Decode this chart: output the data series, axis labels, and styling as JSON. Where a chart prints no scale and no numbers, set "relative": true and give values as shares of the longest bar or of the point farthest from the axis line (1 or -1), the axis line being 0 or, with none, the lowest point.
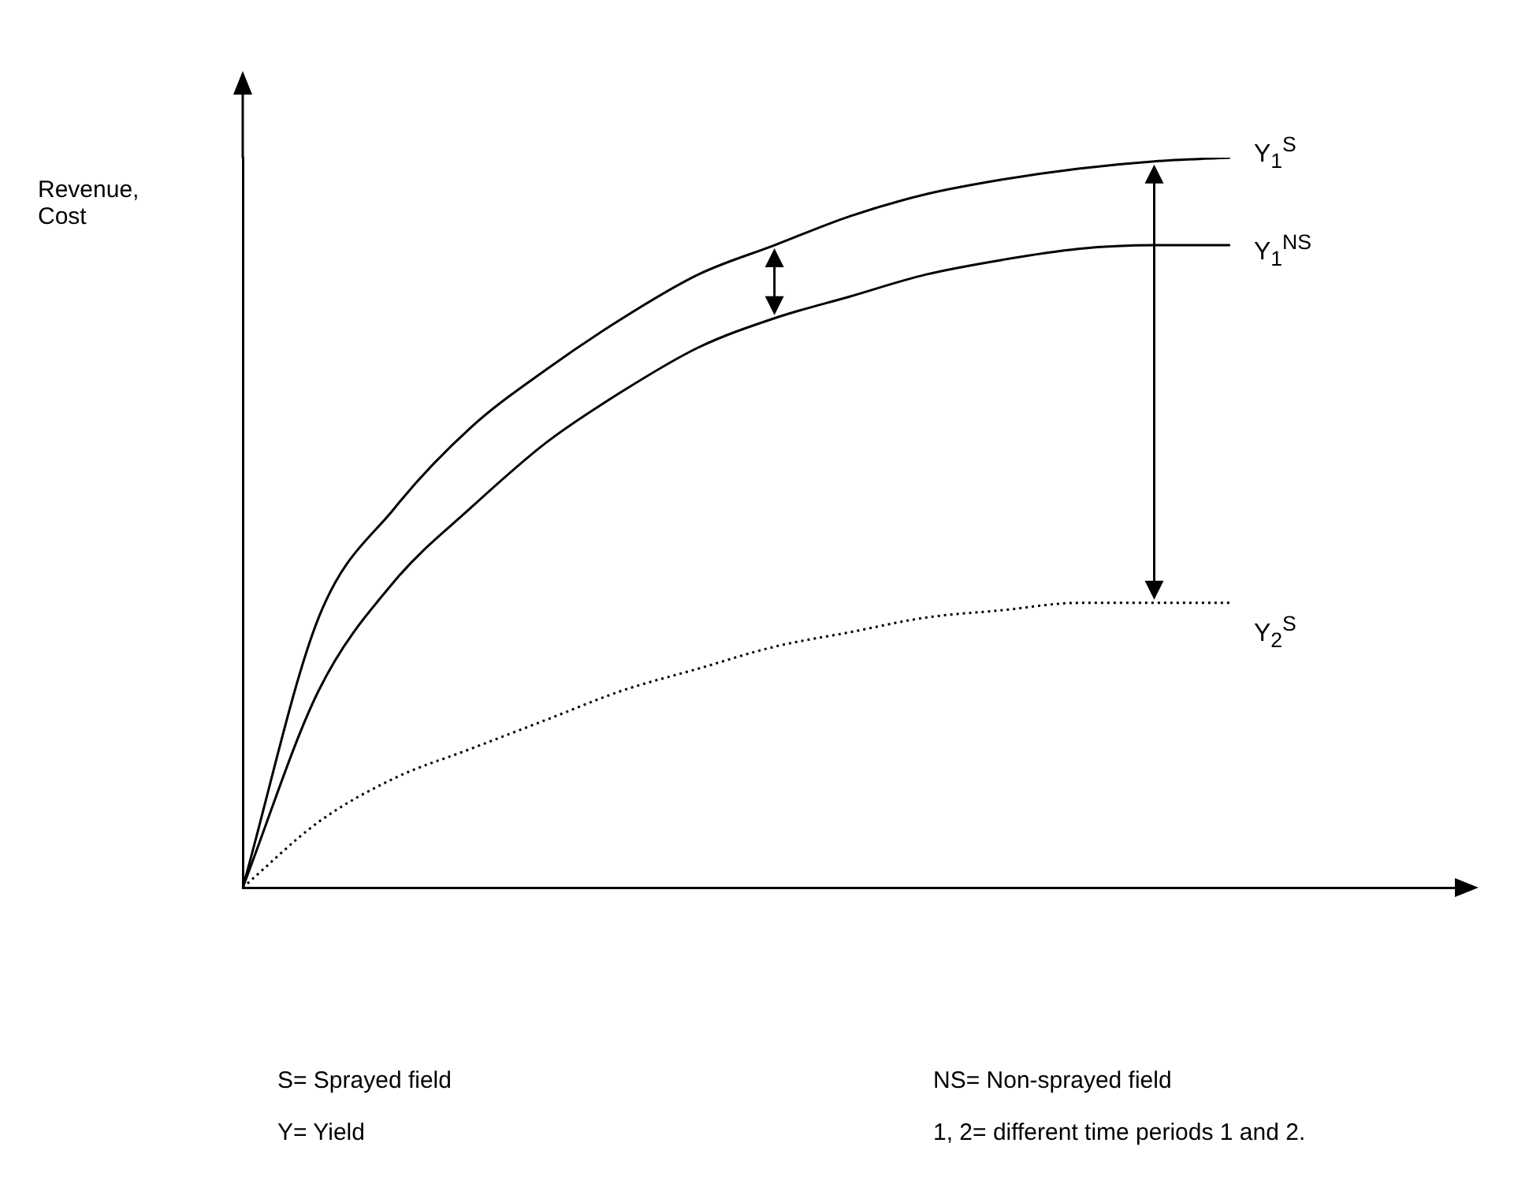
{
  "chart_data": {
    "type": "line",
    "relative": true,
    "ylabel": "Revenue, Cost",
    "categories": [
      null,
      null,
      null,
      null,
      null,
      null,
      null,
      null,
      null,
      null,
      null,
      null,
      null,
      null,
      null,
      null,
      null
    ],
    "series": [
      {
        "name": "Y$_{1}$$^{S}$",
        "color": "#000000",
        "line_style": "solid",
        "values": [
          0,
          0.37,
          0.52,
          0.63,
          0.71,
          0.78,
          0.84,
          0.88,
          0.92,
          0.95,
          0.97,
          0.985,
          0.995,
          1,
          null,
          null,
          null
        ]
      },
      {
        "name": "Y$_{1}$$^{NS}$",
        "color": "#000000",
        "line_style": "solid",
        "values": [
          0,
          0.27,
          0.42,
          0.52,
          0.61,
          0.68,
          0.74,
          0.78,
          0.81,
          0.84,
          0.86,
          0.875,
          0.88,
          0.88,
          null,
          null,
          null
        ]
      },
      {
        "name": "Y$_{2}$$^{S}$",
        "color": "#000000",
        "line_style": "dotted",
        "values": [
          0,
          0.09,
          0.15,
          0.19,
          0.23,
          0.27,
          0.3,
          0.33,
          0.35,
          0.37,
          0.38,
          0.39,
          0.39,
          0.39,
          null,
          null,
          null
        ]
      }
    ],
    "marker": "none",
    "grid": false,
    "legend": false,
    "tick_labels": false,
    "annotations": [
      "S= Sprayed field",
      "NS= Non-sprayed field",
      "Y= Yield",
      "1, 2= different time periods 1 and 2."
    ]
  }
}
